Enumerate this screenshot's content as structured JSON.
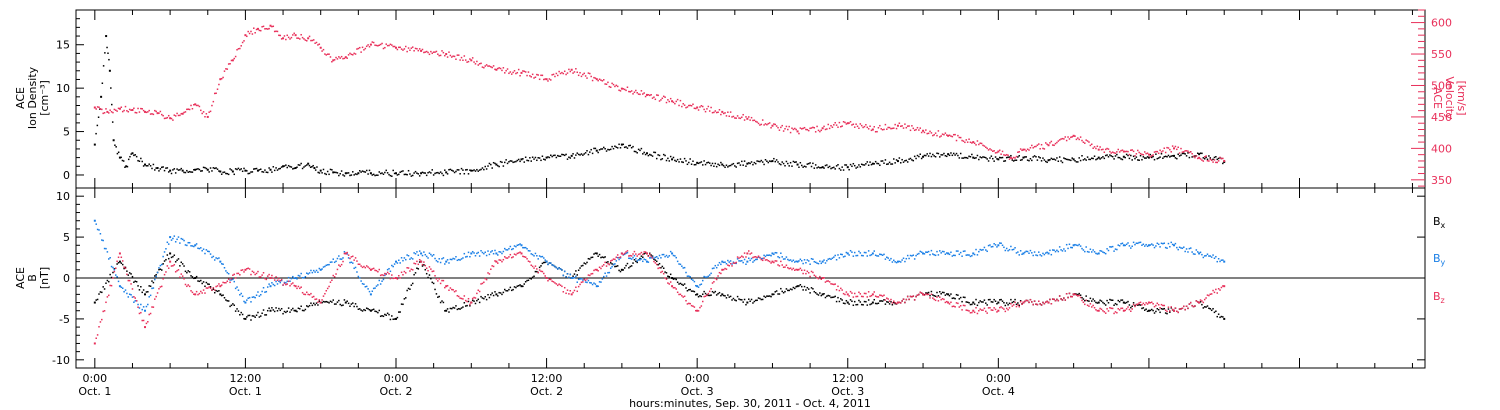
{
  "chart_data": [
    {
      "type": "scatter",
      "panel": "top",
      "ylabel_lines": [
        "ACE",
        "Ion Density",
        "[cm⁻³]"
      ],
      "y2label_lines": [
        "ACE",
        "Velocity",
        "[km/s]"
      ],
      "ylim": [
        -1.5,
        19
      ],
      "yticks": [
        "0",
        "5",
        "10",
        "15"
      ],
      "y2lim": [
        337,
        620
      ],
      "y2ticks": [
        "350",
        "400",
        "450",
        "500",
        "550",
        "600"
      ],
      "series": [
        {
          "color": "#000000",
          "axis": "left",
          "x": [
            0.0,
            0.5,
            0.9,
            1.2,
            1.5,
            2.0,
            2.5,
            3.0,
            4.0,
            5.0,
            6.0,
            7.0,
            8.0,
            9.0,
            10.0,
            11.0,
            12.0,
            13.0,
            14.0,
            15.0,
            16.0,
            17.0,
            17.5,
            18.0,
            19.0,
            20.0,
            21.0,
            22.0,
            24.0,
            26.0,
            28.0,
            30.0,
            32.0,
            34.0,
            36.0,
            38.0,
            40.0,
            42.0,
            44.0,
            46.0,
            48.0,
            50.0,
            52.0,
            54.0,
            56.0,
            58.0,
            60.0,
            62.0,
            64.0,
            66.0,
            68.0,
            70.0,
            72.0,
            74.0,
            76.0,
            78.0,
            80.0,
            82.0,
            84.0,
            86.0,
            88.0,
            90.0
          ],
          "y": [
            3.5,
            9.0,
            16.0,
            12.0,
            4.0,
            2.0,
            1.0,
            2.5,
            1.2,
            0.8,
            0.5,
            0.5,
            0.6,
            0.6,
            0.4,
            0.4,
            0.5,
            0.5,
            0.6,
            1.0,
            0.8,
            1.3,
            0.8,
            0.5,
            0.3,
            0.2,
            0.2,
            0.2,
            0.2,
            0.2,
            0.3,
            0.5,
            1.2,
            1.8,
            2.0,
            2.2,
            2.8,
            3.5,
            2.5,
            1.8,
            1.4,
            1.2,
            1.3,
            1.6,
            1.2,
            0.9,
            0.9,
            1.3,
            1.6,
            2.1,
            2.4,
            2.0,
            1.8,
            2.0,
            1.7,
            1.8,
            2.0,
            2.1,
            2.0,
            2.2,
            2.4,
            1.5
          ]
        },
        {
          "color": "#e8305a",
          "axis": "right",
          "x": [
            0.0,
            1.0,
            2.0,
            3.0,
            4.0,
            5.0,
            6.0,
            7.0,
            8.0,
            9.0,
            10.0,
            11.0,
            12.0,
            13.0,
            14.0,
            15.0,
            16.0,
            17.0,
            18.0,
            19.0,
            20.0,
            22.0,
            24.0,
            26.0,
            28.0,
            30.0,
            32.0,
            34.0,
            36.0,
            38.0,
            40.0,
            42.0,
            44.0,
            46.0,
            48.0,
            50.0,
            52.0,
            54.0,
            56.0,
            58.0,
            60.0,
            62.0,
            64.0,
            66.0,
            68.0,
            70.0,
            72.0,
            73.0,
            74.0,
            76.0,
            78.0,
            80.0,
            82.0,
            84.0,
            86.0,
            88.0,
            90.0
          ],
          "y": [
            465,
            458,
            463,
            461,
            458,
            456,
            448,
            455,
            470,
            450,
            510,
            540,
            580,
            590,
            595,
            575,
            580,
            575,
            560,
            540,
            545,
            565,
            560,
            555,
            550,
            540,
            525,
            520,
            510,
            525,
            510,
            495,
            485,
            475,
            465,
            458,
            447,
            436,
            427,
            432,
            440,
            430,
            436,
            428,
            420,
            410,
            395,
            385,
            398,
            405,
            420,
            398,
            395,
            390,
            400,
            385,
            380
          ]
        }
      ]
    },
    {
      "type": "scatter",
      "panel": "bottom",
      "ylabel_lines": [
        "ACE",
        "B",
        "[nT]"
      ],
      "ylim": [
        -11,
        11
      ],
      "yticks": [
        "-10",
        "-5",
        "0",
        "5",
        "10"
      ],
      "xlabel": "hours:minutes, Sep. 30, 2011 - Oct. 4, 2011",
      "xlim": [
        -1.5,
        106
      ],
      "xticks": [
        {
          "x": 0,
          "time": "0:00",
          "date": "Oct. 1"
        },
        {
          "x": 12,
          "time": "12:00",
          "date": "Oct. 1"
        },
        {
          "x": 24,
          "time": "0:00",
          "date": "Oct. 2"
        },
        {
          "x": 36,
          "time": "12:00",
          "date": "Oct. 2"
        },
        {
          "x": 48,
          "time": "0:00",
          "date": "Oct. 3"
        },
        {
          "x": 60,
          "time": "12:00",
          "date": "Oct. 3"
        },
        {
          "x": 72,
          "time": "0:00",
          "date": "Oct. 4"
        }
      ],
      "series": [
        {
          "name_base": "B",
          "name_sub": "x",
          "color": "#000000",
          "x": [
            0,
            2,
            4,
            6,
            8,
            10,
            12,
            14,
            16,
            18,
            20,
            22,
            24,
            26,
            28,
            30,
            32,
            34,
            36,
            38,
            40,
            42,
            44,
            46,
            48,
            50,
            52,
            54,
            56,
            58,
            60,
            62,
            64,
            66,
            68,
            70,
            72,
            74,
            76,
            78,
            80,
            82,
            84,
            86,
            88,
            90
          ],
          "y": [
            -3,
            2,
            -2,
            3,
            0,
            -2,
            -5,
            -4,
            -4,
            -3,
            -3,
            -4,
            -5,
            2,
            -4,
            -3,
            -2,
            -1,
            2,
            0,
            3,
            1,
            3,
            0,
            -2,
            -2,
            -3,
            -2,
            -1,
            -2,
            -3,
            -3,
            -3,
            -2,
            -2,
            -3,
            -3,
            -3,
            -3,
            -2,
            -3,
            -3,
            -4,
            -4,
            -3,
            -5
          ]
        },
        {
          "name_base": "B",
          "name_sub": "y",
          "color": "#1a7fe6",
          "x": [
            0,
            2,
            4,
            6,
            8,
            10,
            12,
            14,
            16,
            18,
            20,
            22,
            24,
            26,
            28,
            30,
            32,
            34,
            36,
            38,
            40,
            42,
            44,
            46,
            48,
            50,
            52,
            54,
            56,
            58,
            60,
            62,
            64,
            66,
            68,
            70,
            72,
            74,
            76,
            78,
            80,
            82,
            84,
            86,
            88,
            90
          ],
          "y": [
            7,
            -1,
            -4,
            5,
            4,
            2,
            -3,
            -1,
            0,
            1,
            3,
            -2,
            2,
            3,
            2,
            3,
            3,
            4,
            2,
            0,
            -1,
            3,
            2,
            3,
            -1,
            2,
            2,
            3,
            2,
            2,
            3,
            3,
            2,
            3,
            3,
            3,
            4,
            3,
            3,
            4,
            3,
            4,
            4,
            4,
            3,
            2
          ]
        },
        {
          "name_base": "B",
          "name_sub": "z",
          "color": "#e8305a",
          "x": [
            0,
            2,
            4,
            6,
            8,
            10,
            12,
            14,
            16,
            18,
            20,
            22,
            24,
            26,
            28,
            30,
            32,
            34,
            36,
            38,
            40,
            42,
            44,
            46,
            48,
            50,
            52,
            54,
            56,
            58,
            60,
            62,
            64,
            66,
            68,
            70,
            72,
            74,
            76,
            78,
            80,
            82,
            84,
            86,
            88,
            90
          ],
          "y": [
            -8,
            3,
            -6,
            2,
            -2,
            -1,
            1,
            0,
            -1,
            -3,
            3,
            1,
            0,
            2,
            -1,
            -3,
            2,
            3,
            0,
            -2,
            1,
            3,
            3,
            -1,
            -4,
            1,
            3,
            2,
            1,
            0,
            -2,
            -2,
            -3,
            -2,
            -3,
            -4,
            -4,
            -3,
            -3,
            -2,
            -4,
            -4,
            -3,
            -4,
            -3,
            -1
          ]
        }
      ]
    }
  ]
}
